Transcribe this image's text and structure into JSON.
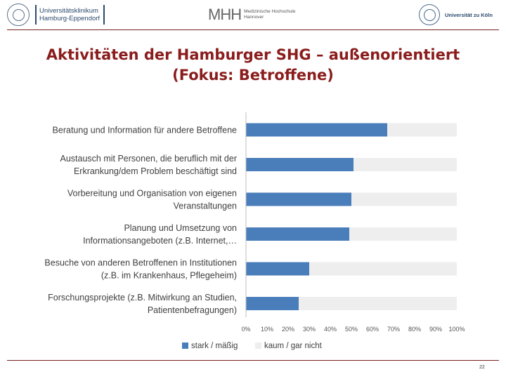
{
  "header": {
    "uke_text_line1": "Universitätsklinikum",
    "uke_text_line2": "Hamburg-Eppendorf",
    "mhh_mark": "MHH",
    "mhh_text_line1": "Medizinische Hochschule",
    "mhh_text_line2": "Hannover",
    "koeln_text": "Universität zu Köln"
  },
  "title": {
    "line1": "Aktivitäten der Hamburger SHG – außenorientiert",
    "line2": "(Fokus: Betroffene)"
  },
  "chart_data": {
    "type": "bar",
    "orientation": "horizontal",
    "stacked": true,
    "categories": [
      [
        "Beratung und Information für andere Betroffene"
      ],
      [
        "Austausch mit Personen, die beruflich mit der",
        "Erkrankung/dem Problem beschäftigt sind"
      ],
      [
        "Vorbereitung und Organisation von eigenen",
        "Veranstaltungen"
      ],
      [
        "Planung und Umsetzung von",
        "Informationsangeboten (z.B. Internet,…"
      ],
      [
        "Besuche von anderen Betroffenen in Institutionen",
        "(z.B. im Krankenhaus, Pflegeheim)"
      ],
      [
        "Forschungsprojekte (z.B. Mitwirkung an Studien,",
        "Patientenbefragungen)"
      ]
    ],
    "series": [
      {
        "name": "stark / mäßig",
        "color": "#4a7ebb",
        "values": [
          67,
          51,
          50,
          49,
          30,
          25
        ]
      },
      {
        "name": "kaum / gar nicht",
        "color": "#eeeeee",
        "values": [
          33,
          49,
          50,
          51,
          70,
          75
        ]
      }
    ],
    "xlim": [
      0,
      100
    ],
    "xticks": [
      "0%",
      "10%",
      "20%",
      "30%",
      "40%",
      "50%",
      "60%",
      "70%",
      "80%",
      "90%",
      "100%"
    ],
    "grid": false,
    "legend_position": "bottom"
  },
  "footer": {
    "page_number": "22"
  }
}
